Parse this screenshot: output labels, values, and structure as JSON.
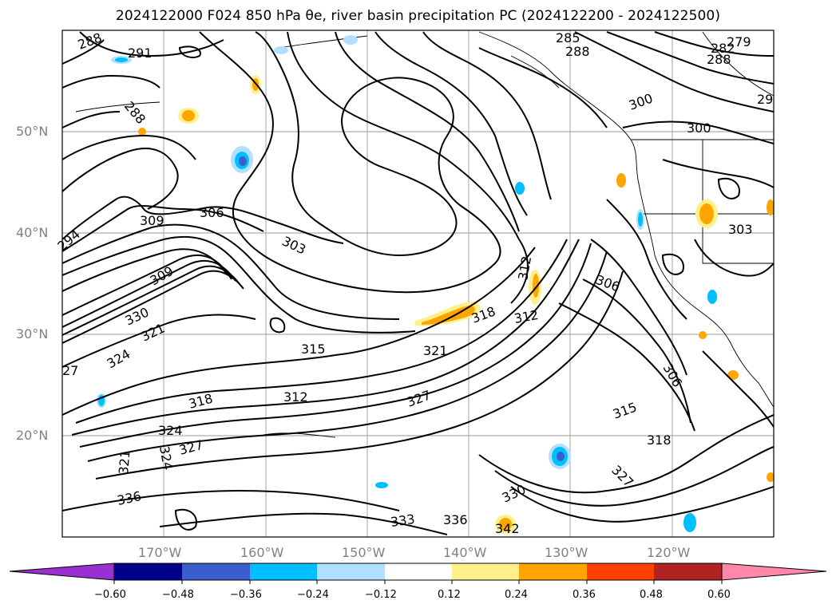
{
  "title": "2024122000 F024 850 hPa θe, river basin precipitation PC (2024122200 - 2024122500)",
  "lat_labels": [
    "50°N",
    "40°N",
    "30°N",
    "20°N"
  ],
  "lon_labels": [
    "170°W",
    "160°W",
    "150°W",
    "140°W",
    "130°W",
    "120°W"
  ],
  "contour_labels": [
    "288",
    "291",
    "288",
    "294",
    "309",
    "306",
    "303",
    "309",
    "330",
    "321",
    "324",
    "27",
    "318",
    "324",
    "327",
    "321",
    "324",
    "336",
    "312",
    "315",
    "321",
    "318",
    "312",
    "327",
    "333",
    "336",
    "342",
    "330",
    "327",
    "315",
    "318",
    "306",
    "303",
    "306",
    "312",
    "300",
    "300",
    "285",
    "288",
    "279",
    "282",
    "288",
    "29"
  ],
  "colorbar": {
    "ticks": [
      "−0.60",
      "−0.48",
      "−0.36",
      "−0.24",
      "−0.12",
      "0.12",
      "0.24",
      "0.36",
      "0.48",
      "0.60"
    ],
    "colors": [
      "#9b30d0",
      "#00008b",
      "#3a5fcd",
      "#00bfff",
      "#b0e0ff",
      "#ffffff",
      "#fff08c",
      "#ffa500",
      "#ff4000",
      "#b22222",
      "#ff88aa"
    ]
  }
}
